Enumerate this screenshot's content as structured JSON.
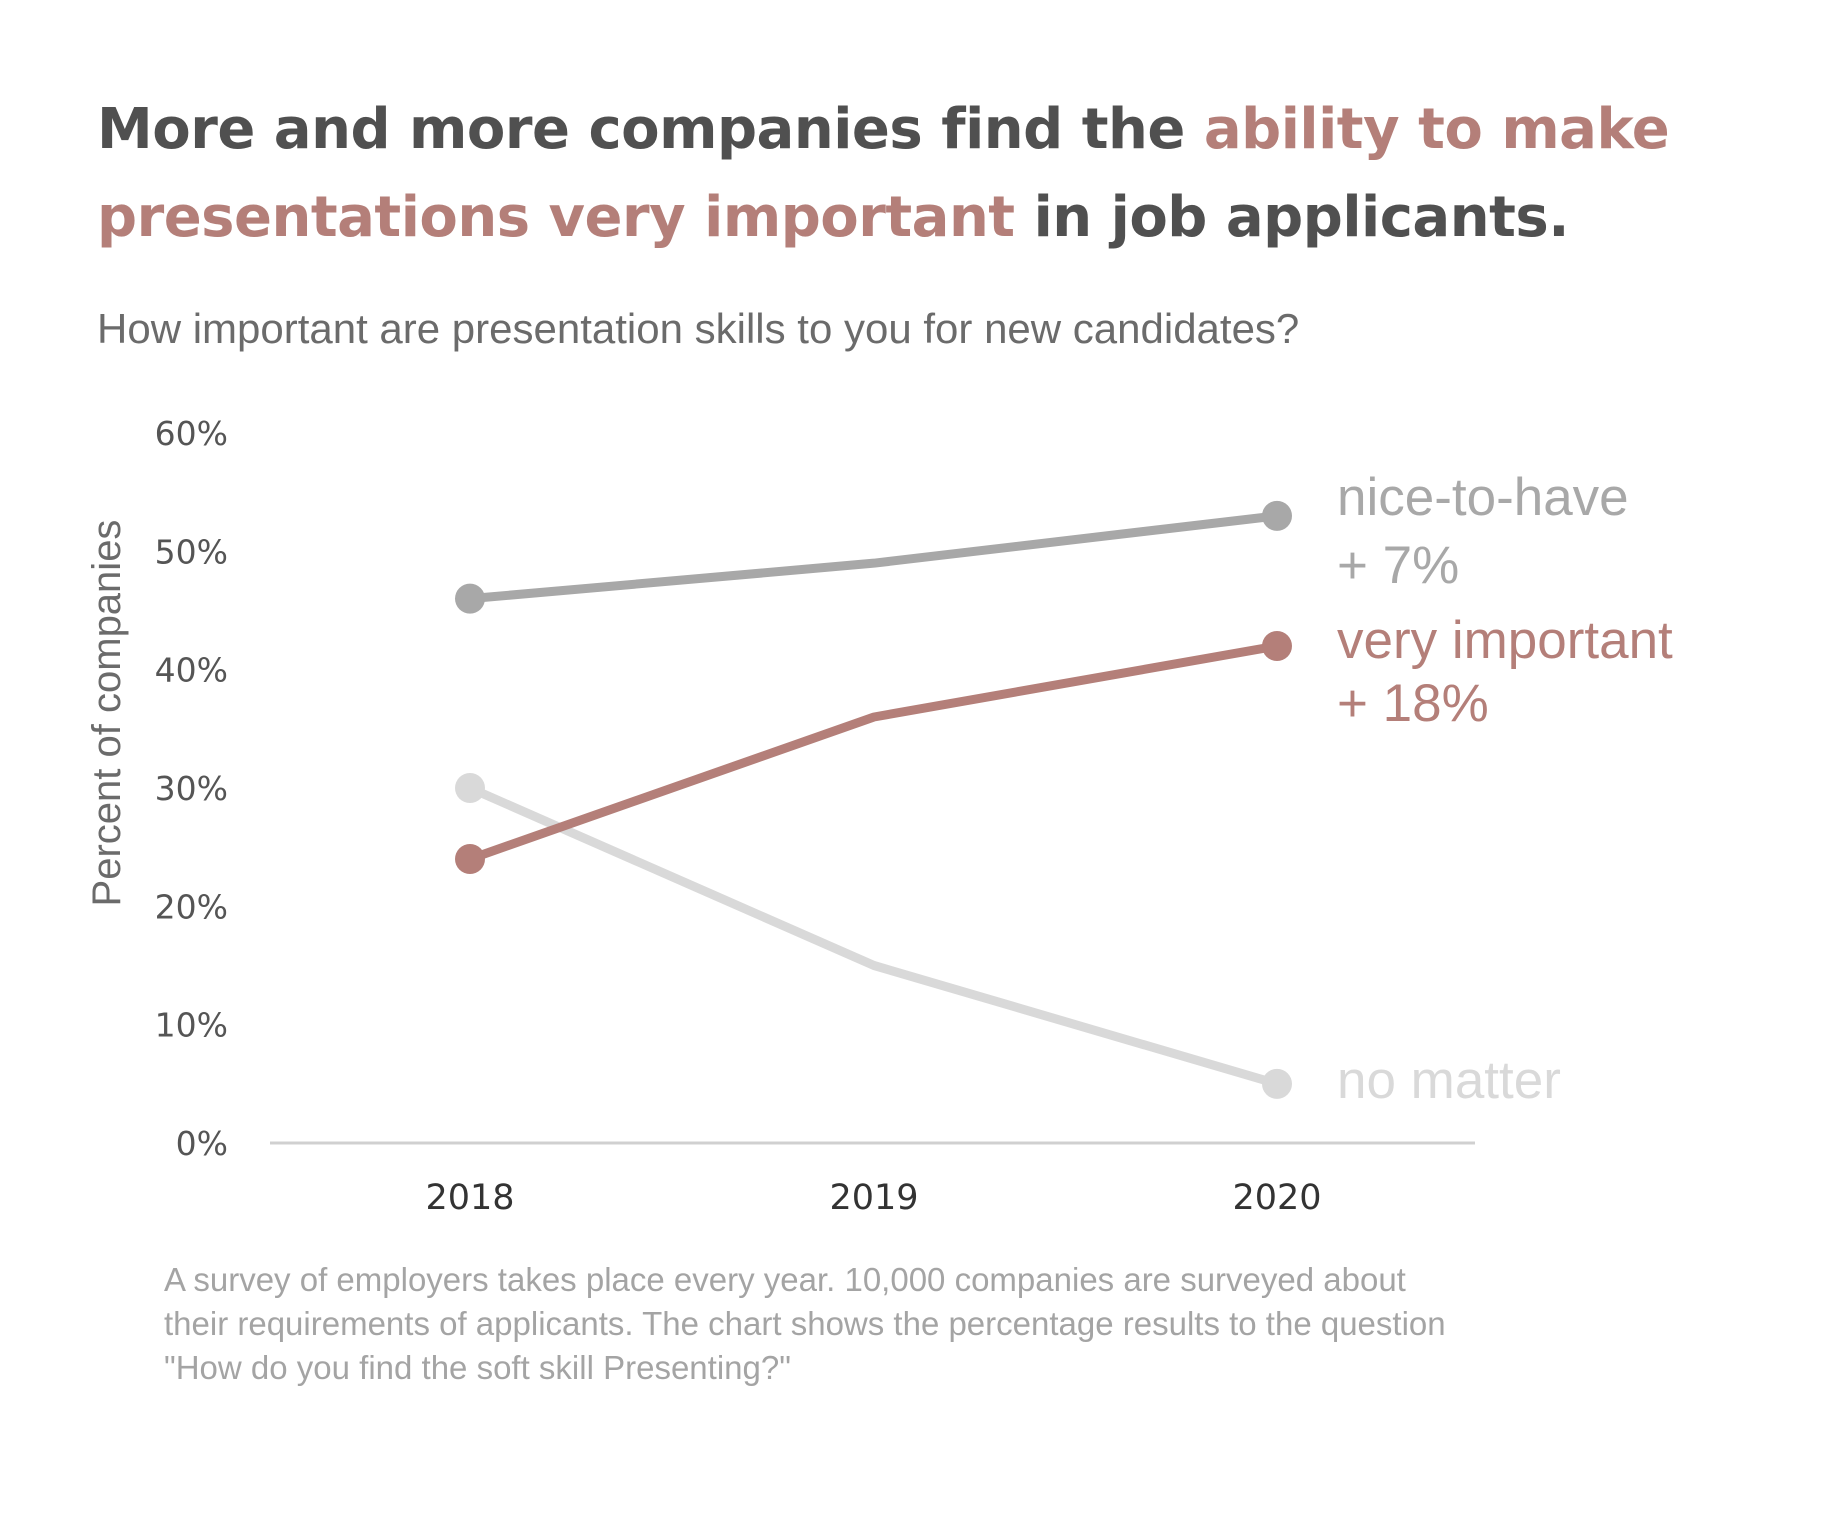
{
  "header": {
    "title_part1": "More and more companies find the ",
    "title_highlight": "ability to make presentations very important",
    "title_part2": " in job applicants.",
    "subtitle": "How important are presentation skills to you for new candidates?"
  },
  "footnote": {
    "lines": [
      "A survey of employers takes place every year. 10,000 companies are surveyed about",
      "their requirements of applicants.  The chart shows the percentage results to the question",
      "\"How do you find the soft skill Presenting?\""
    ]
  },
  "colors": {
    "title_text": "#505050",
    "accent": "#b47f79",
    "nice_to_have": "#a8a8a8",
    "very_important": "#b47f79",
    "no_matter": "#d9d9d9",
    "axis_text": "#555555",
    "axis_line": "#d0d0d0"
  },
  "chart_data": {
    "type": "line",
    "x": [
      "2018",
      "2019",
      "2020"
    ],
    "ylabel": "Percent of companies",
    "xlabel": "",
    "ylim": [
      0,
      60
    ],
    "y_ticks": [
      0,
      10,
      20,
      30,
      40,
      50,
      60
    ],
    "y_tick_labels": [
      "0%",
      "10%",
      "20%",
      "30%",
      "40%",
      "50%",
      "60%"
    ],
    "grid": false,
    "legend": "direct labels at right end of lines",
    "series": [
      {
        "name": "nice-to-have",
        "change_label": "+ 7%",
        "values": [
          46,
          49,
          53
        ],
        "color": "#a8a8a8"
      },
      {
        "name": "very important",
        "change_label": "+ 18%",
        "values": [
          24,
          36,
          42
        ],
        "color": "#b47f79"
      },
      {
        "name": "no matter",
        "change_label": "",
        "values": [
          30,
          15,
          5
        ],
        "color": "#d9d9d9"
      }
    ]
  }
}
